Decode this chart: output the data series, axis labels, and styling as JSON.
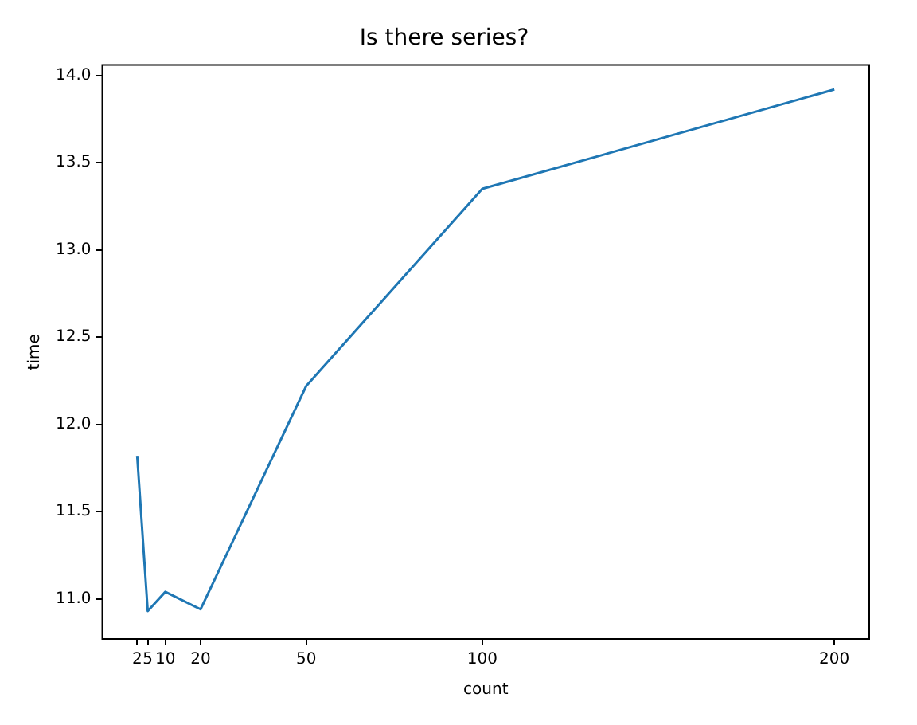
{
  "chart_data": {
    "type": "line",
    "title": "Is there series?",
    "xlabel": "count",
    "ylabel": "time",
    "x": [
      2,
      5,
      10,
      20,
      50,
      100,
      200
    ],
    "series": [
      {
        "color": "#1f77b4",
        "values": [
          11.82,
          10.93,
          11.04,
          10.94,
          12.22,
          13.35,
          13.92
        ]
      }
    ],
    "xlim": [
      -7.9,
      209.9
    ],
    "xticks": [
      2,
      5,
      10,
      20,
      50,
      100,
      200
    ],
    "ylim": [
      10.77,
      14.06
    ],
    "yticks": [
      {
        "value": 11,
        "label": "11.0"
      },
      11.5,
      {
        "value": 12,
        "label": "12.0"
      },
      12.5,
      {
        "value": 13,
        "label": "13.0"
      },
      13.5,
      {
        "value": 14,
        "label": "14.0"
      }
    ],
    "grid": false,
    "legend": false,
    "marker": "none",
    "line_style": "solid"
  }
}
